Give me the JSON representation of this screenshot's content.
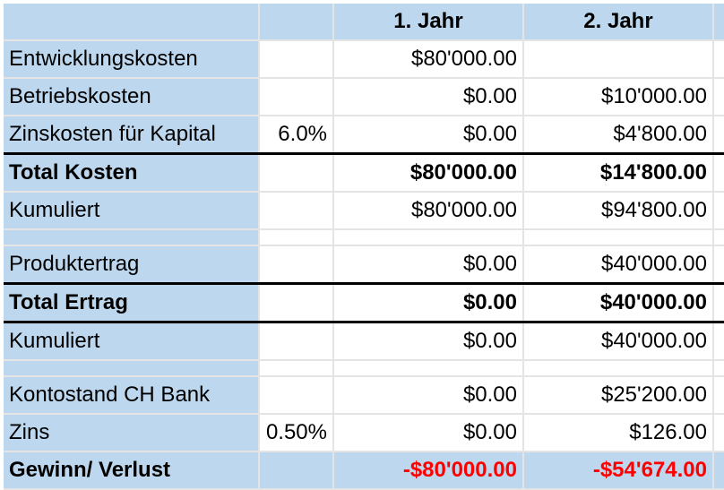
{
  "header": {
    "col_year1": "1. Jahr",
    "col_year2": "2. Jahr"
  },
  "rows": {
    "entwicklung": {
      "label": "Entwicklungskosten",
      "rate": "",
      "y1": "$80'000.00",
      "y2": ""
    },
    "betrieb": {
      "label": "Betriebskosten",
      "rate": "",
      "y1": "$0.00",
      "y2": "$10'000.00"
    },
    "zins_kapital": {
      "label": "Zinskosten für Kapital",
      "rate": "6.0%",
      "y1": "$0.00",
      "y2": "$4'800.00"
    },
    "total_kosten": {
      "label": "Total Kosten",
      "rate": "",
      "y1": "$80'000.00",
      "y2": "$14'800.00"
    },
    "kumuliert_kosten": {
      "label": "Kumuliert",
      "rate": "",
      "y1": "$80'000.00",
      "y2": "$94'800.00"
    },
    "produktertrag": {
      "label": "Produktertrag",
      "rate": "",
      "y1": "$0.00",
      "y2": "$40'000.00"
    },
    "total_ertrag": {
      "label": "Total Ertrag",
      "rate": "",
      "y1": "$0.00",
      "y2": "$40'000.00"
    },
    "kumuliert_ertrag": {
      "label": "Kumuliert",
      "rate": "",
      "y1": "$0.00",
      "y2": "$40'000.00"
    },
    "kontostand": {
      "label": "Kontostand CH Bank",
      "rate": "",
      "y1": "$0.00",
      "y2": "$25'200.00"
    },
    "zins": {
      "label": "Zins",
      "rate": "0.50%",
      "y1": "$0.00",
      "y2": "$126.00"
    },
    "gewinn": {
      "label": "Gewinn/ Verlust",
      "rate": "",
      "y1": "-$80'000.00",
      "y2": "-$54'674.00"
    }
  },
  "colors": {
    "label_fill": "#bdd7ee",
    "negative": "#ff0000"
  }
}
